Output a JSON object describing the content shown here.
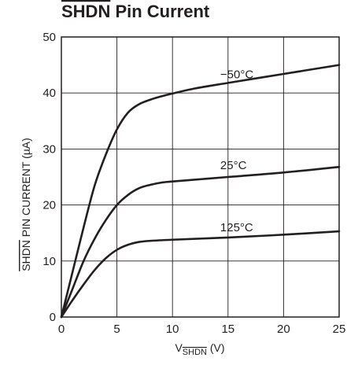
{
  "chart_data": {
    "type": "line",
    "title": {
      "overlined": "SHDN",
      "rest": " Pin Current"
    },
    "xlabel": {
      "prefix": "V",
      "subscript": "SHDN",
      "suffix": " (V)"
    },
    "ylabel": {
      "overlined": "SHDN",
      "rest": " PIN CURRENT (µA)"
    },
    "xlim": [
      0,
      25
    ],
    "ylim": [
      0,
      50
    ],
    "xticks": [
      "0",
      "5",
      "10",
      "15",
      "20",
      "25"
    ],
    "yticks": [
      "0",
      "10",
      "20",
      "30",
      "40",
      "50"
    ],
    "grid": true,
    "legend": "none",
    "series": [
      {
        "name": "−50°C",
        "x": [
          0,
          1,
          2,
          3,
          4,
          5,
          6,
          7,
          8,
          9,
          10,
          12,
          15,
          20,
          25
        ],
        "y": [
          0,
          8,
          16,
          23.5,
          29,
          33.5,
          36.5,
          38,
          38.8,
          39.4,
          39.9,
          40.8,
          41.8,
          43.4,
          45
        ],
        "color": "#231f20"
      },
      {
        "name": "25°C",
        "x": [
          0,
          1,
          2,
          3,
          4,
          5,
          6,
          7,
          8,
          9,
          10,
          15,
          20,
          25
        ],
        "y": [
          0,
          5,
          10,
          14,
          17.3,
          20,
          21.8,
          23,
          23.6,
          24,
          24.2,
          25,
          25.8,
          26.8
        ],
        "color": "#231f20"
      },
      {
        "name": "125°C",
        "x": [
          0,
          1,
          2,
          3,
          4,
          5,
          6,
          7,
          8,
          10,
          15,
          20,
          25
        ],
        "y": [
          0,
          3,
          5.8,
          8.4,
          10.5,
          12,
          12.9,
          13.4,
          13.6,
          13.8,
          14.2,
          14.7,
          15.3
        ],
        "color": "#231f20"
      }
    ],
    "annotations": [
      {
        "text": "−50°C",
        "x": 14.3,
        "y": 42.6
      },
      {
        "text": "25°C",
        "x": 14.3,
        "y": 26.4
      },
      {
        "text": "125°C",
        "x": 14.3,
        "y": 15.3
      }
    ]
  }
}
